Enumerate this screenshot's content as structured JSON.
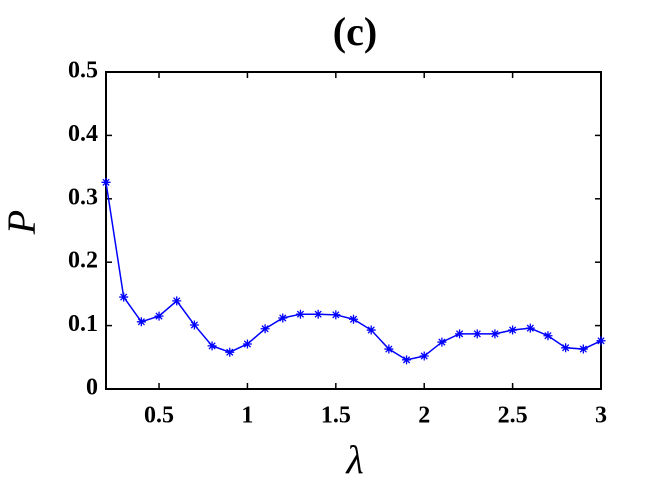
{
  "chart_data": {
    "type": "line",
    "title": "(c)",
    "xlabel": "λ",
    "ylabel": "P",
    "x": [
      0.2,
      0.3,
      0.4,
      0.5,
      0.6,
      0.7,
      0.8,
      0.9,
      1.0,
      1.1,
      1.2,
      1.3,
      1.4,
      1.5,
      1.6,
      1.7,
      1.8,
      1.9,
      2.0,
      2.1,
      2.2,
      2.3,
      2.4,
      2.5,
      2.6,
      2.7,
      2.8,
      2.9,
      3.0
    ],
    "series": [
      {
        "color": "#0000ff",
        "marker": "asterisk",
        "values": [
          0.326,
          0.145,
          0.106,
          0.115,
          0.139,
          0.101,
          0.068,
          0.058,
          0.071,
          0.095,
          0.112,
          0.118,
          0.118,
          0.117,
          0.11,
          0.093,
          0.063,
          0.046,
          0.052,
          0.074,
          0.087,
          0.087,
          0.087,
          0.093,
          0.096,
          0.084,
          0.065,
          0.063,
          0.076
        ]
      }
    ],
    "xlim": [
      0.2,
      3
    ],
    "ylim": [
      0,
      0.5
    ],
    "xticks": [
      0.5,
      1,
      1.5,
      2,
      2.5,
      3
    ],
    "yticks": [
      0,
      0.1,
      0.2,
      0.3,
      0.4,
      0.5
    ],
    "grid": false
  }
}
